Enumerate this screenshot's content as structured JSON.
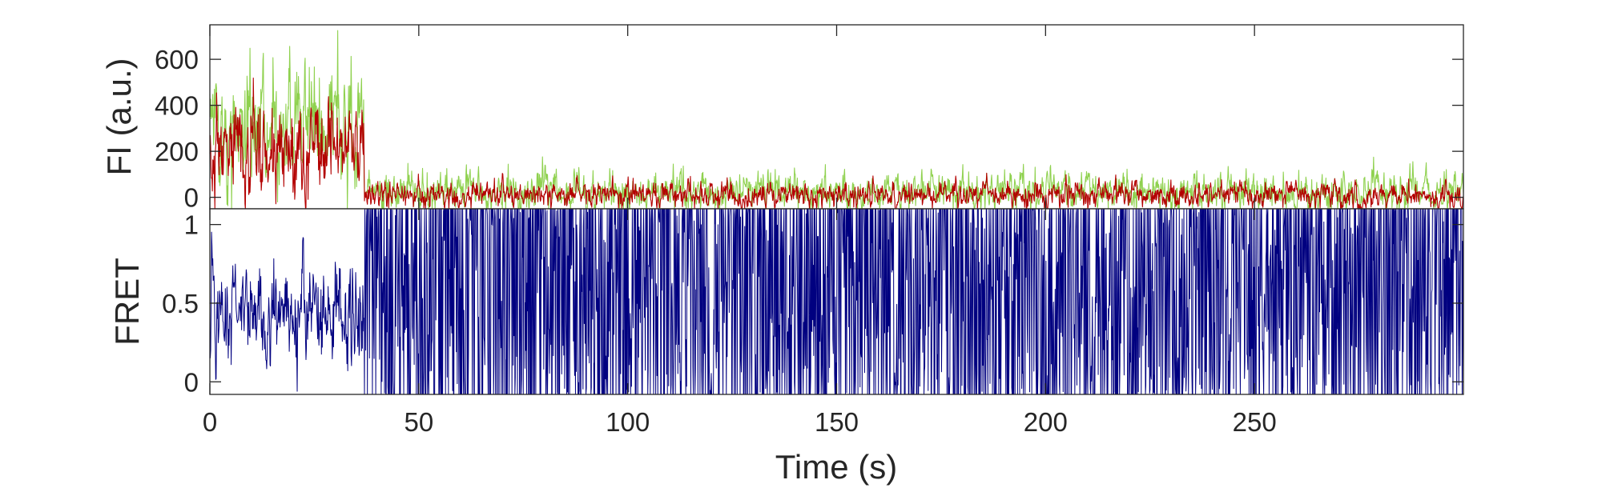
{
  "chart_data": [
    {
      "type": "line",
      "panel": "top",
      "ylabel": "FI (a.u.)",
      "xlim": [
        0,
        300
      ],
      "ylim": [
        -50,
        750
      ],
      "yticks": [
        0,
        200,
        400,
        600
      ],
      "ytick_labels": [
        "0",
        "200",
        "400",
        "600"
      ],
      "xticks": [
        0,
        50,
        100,
        150,
        200,
        250
      ],
      "grid": false,
      "legend": "none",
      "series": [
        {
          "color": "#8fd14f",
          "segments": [
            {
              "x_range": [
                0,
                37
              ],
              "mean": 300,
              "noise": 150
            },
            {
              "x_range": [
                37,
                300
              ],
              "mean": 25,
              "noise": 45
            }
          ]
        },
        {
          "color": "#b30000",
          "segments": [
            {
              "x_range": [
                0,
                37
              ],
              "mean": 210,
              "noise": 110
            },
            {
              "x_range": [
                37,
                300
              ],
              "mean": 10,
              "noise": 30
            }
          ]
        }
      ]
    },
    {
      "type": "line",
      "panel": "bottom",
      "ylabel": "FRET",
      "xlabel": "Time (s)",
      "xlim": [
        0,
        300
      ],
      "ylim": [
        -0.08,
        1.1
      ],
      "yticks": [
        0,
        0.5,
        1
      ],
      "ytick_labels": [
        "0",
        "0.5",
        "1"
      ],
      "xticks": [
        0,
        50,
        100,
        150,
        200,
        250
      ],
      "xtick_labels": [
        "0",
        "50",
        "100",
        "150",
        "200",
        "250"
      ],
      "grid": false,
      "legend": "none",
      "series": [
        {
          "color": "#000080",
          "segments": [
            {
              "x_range": [
                0,
                37
              ],
              "mean": 0.45,
              "noise": 0.18
            },
            {
              "x_range": [
                37,
                300
              ],
              "mean": 0.5,
              "noise": 0.5
            }
          ]
        }
      ]
    }
  ]
}
